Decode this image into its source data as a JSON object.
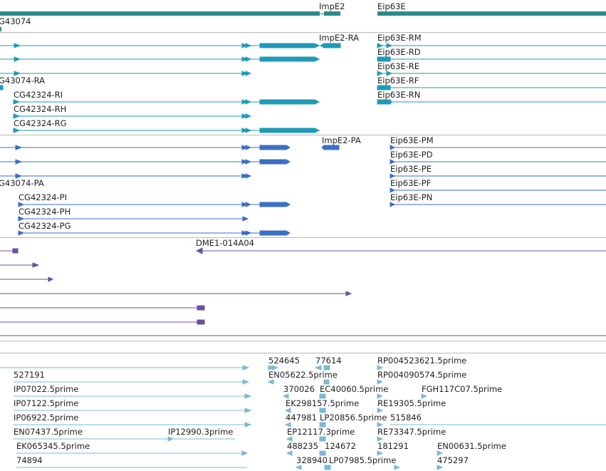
{
  "colors": {
    "gene": "#2f8a8a",
    "transcript_flybase": "#1f9bb8",
    "transcript_refseq": "#3b6fc4",
    "cdna": "#6a4fa0",
    "est": "#7ab8d8",
    "separator": "#b8b8b8"
  },
  "tracks": {
    "genes": {
      "labels": [
        "ImpE2",
        "Eip63E",
        "G43074"
      ]
    },
    "flybase_transcripts": {
      "labels": [
        "ImpE2-RA",
        "Eip63E-RM",
        "Eip63E-RD",
        "Eip63E-RE",
        "G43074-RA",
        "Eip63E-RF",
        "CG42324-RI",
        "Eip63E-RN",
        "CG42324-RH",
        "CG42324-RG"
      ]
    },
    "refseq_transcripts": {
      "labels": [
        "ImpE2-PA",
        "Eip63E-PM",
        "Eip63E-PD",
        "Eip63E-PE",
        "G43074-PA",
        "Eip63E-PF",
        "CG42324-PI",
        "Eip63E-PN",
        "CG42324-PH",
        "CG42324-PG"
      ]
    },
    "cdna": {
      "labels": [
        "DME1-014A04"
      ]
    },
    "est": {
      "labels": [
        "524645",
        "77614",
        "RP004523621.5prime",
        "527191",
        "EN05622.5prime",
        "RP004090574.5prime",
        "IP07022.5prime",
        "370026",
        "EC40060.5prime",
        "FGH117C07.5prime",
        "IP07122.5prime",
        "EK298157.5prime",
        "RE19305.5prime",
        "IP06922.5prime",
        "447981",
        "LP20856.5prime",
        "515846",
        "EN07437.5prime",
        "IP12990.3prime",
        "EP12117.3prime",
        "RE73347.5prime",
        "EK065345.5prime",
        "488235",
        "124672",
        "181291",
        "EN00631.5prime",
        "74894",
        "328940",
        "LP07985.5prime",
        "475297"
      ]
    }
  }
}
